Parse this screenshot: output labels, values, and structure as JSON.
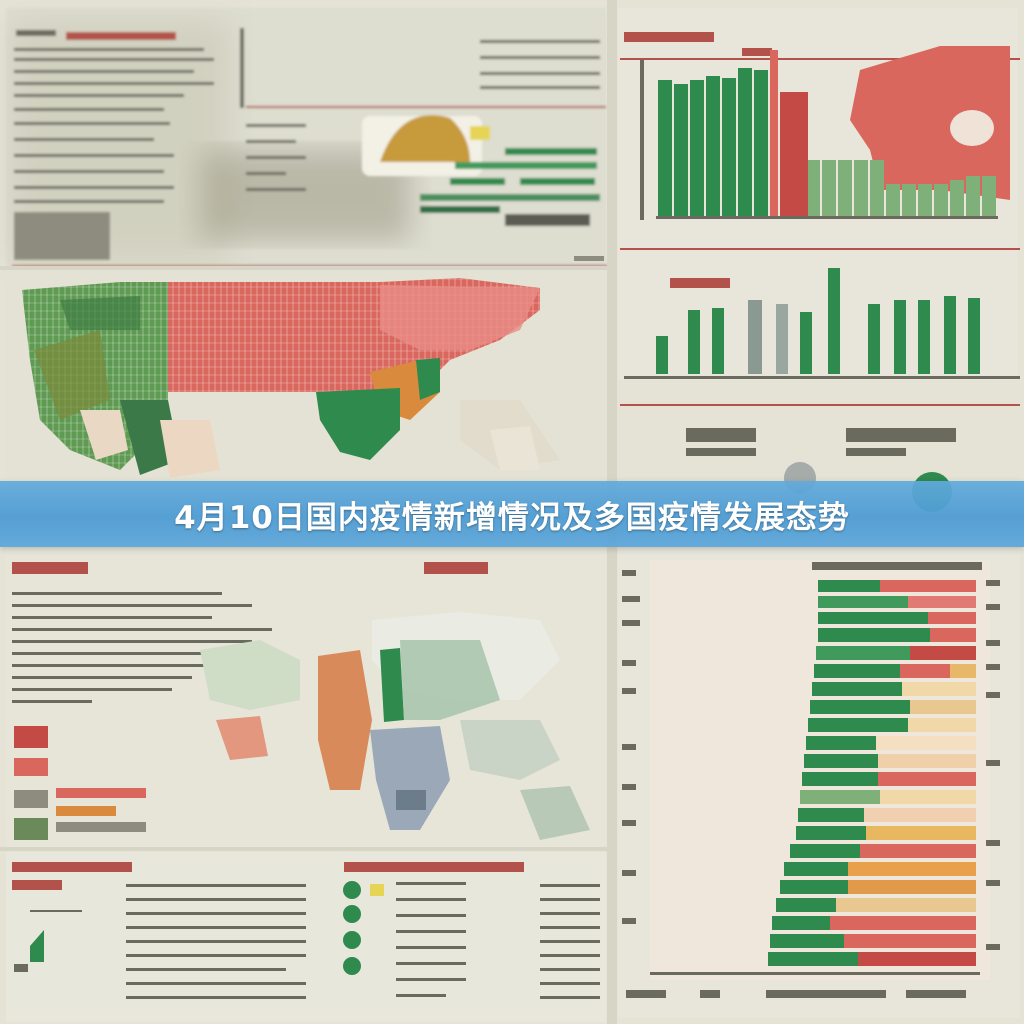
{
  "banner": {
    "title": "4月10日国内疫情新增情况及多国疫情发展态势"
  },
  "colors": {
    "paper": "#e6e5d8",
    "green": "#2f8a4e",
    "light_green": "#7fb07a",
    "red": "#d9675e",
    "orange": "#d98a3c",
    "banner_blue": "#5aa6da"
  },
  "illustration": "blurry-infographic-collage"
}
